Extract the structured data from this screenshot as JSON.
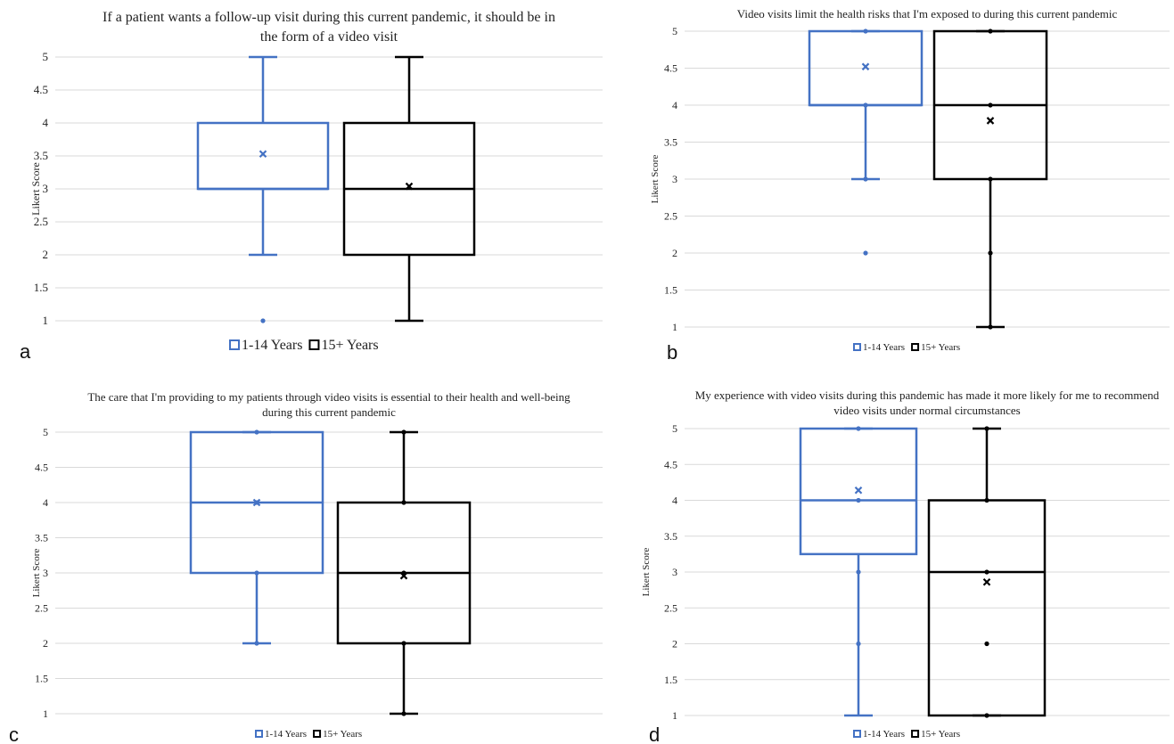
{
  "figure": {
    "legend": [
      "1-14 Years",
      "15+ Years"
    ],
    "colors": {
      "series_a": "#4472C4",
      "series_b": "#000000",
      "grid": "#d9d9d9"
    }
  },
  "chart_data": [
    {
      "type": "box",
      "panel": "a",
      "title_lines": [
        "If a patient wants a follow-up visit during this current pandemic, it should be in",
        "the form of a video visit"
      ],
      "ylabel": "Likert Score",
      "ylim": [
        1,
        5
      ],
      "yticks": [
        "1",
        "1.5",
        "2",
        "2.5",
        "3",
        "3.5",
        "4",
        "4.5",
        "5"
      ],
      "series": [
        {
          "name": "1-14 Years",
          "whisker_low": 2,
          "q1": 3,
          "median": 3,
          "q3": 4,
          "whisker_high": 5,
          "mean": 3.53,
          "points": [
            1
          ]
        },
        {
          "name": "15+ Years",
          "whisker_low": 1,
          "q1": 2,
          "median": 3,
          "q3": 4,
          "whisker_high": 5,
          "mean": 3.04,
          "points": []
        }
      ]
    },
    {
      "type": "box",
      "panel": "b",
      "title_lines": [
        "Video visits limit the health risks that I'm exposed to during this current pandemic"
      ],
      "ylabel": "Likert Score",
      "ylim": [
        1,
        5
      ],
      "yticks": [
        "1",
        "1.5",
        "2",
        "2.5",
        "3",
        "3.5",
        "4",
        "4.5",
        "5"
      ],
      "series": [
        {
          "name": "1-14 Years",
          "whisker_low": 3,
          "q1": 4,
          "median": 4,
          "q3": 5,
          "whisker_high": 5,
          "mean": 4.52,
          "points": [
            2,
            3,
            4,
            5
          ]
        },
        {
          "name": "15+ Years",
          "whisker_low": 1,
          "q1": 3,
          "median": 4,
          "q3": 5,
          "whisker_high": 5,
          "mean": 3.79,
          "points": [
            1,
            2,
            3,
            4,
            5
          ]
        }
      ]
    },
    {
      "type": "box",
      "panel": "c",
      "title_lines": [
        "The care that I'm providing to my patients through video visits is essential to their health and well-being",
        "during this current pandemic"
      ],
      "ylabel": "Likert Score",
      "ylim": [
        1,
        5
      ],
      "yticks": [
        "1",
        "1.5",
        "2",
        "2.5",
        "3",
        "3.5",
        "4",
        "4.5",
        "5"
      ],
      "series": [
        {
          "name": "1-14 Years",
          "whisker_low": 2,
          "q1": 3,
          "median": 4,
          "q3": 5,
          "whisker_high": 5,
          "mean": 4.0,
          "points": [
            2,
            3,
            4,
            5
          ]
        },
        {
          "name": "15+ Years",
          "whisker_low": 1,
          "q1": 2,
          "median": 3,
          "q3": 4,
          "whisker_high": 5,
          "mean": 2.96,
          "points": [
            1,
            2,
            3,
            4,
            5
          ]
        }
      ]
    },
    {
      "type": "box",
      "panel": "d",
      "title_lines": [
        "My experience with video visits during this pandemic has made it more likely for me to recommend",
        "video visits under normal circumstances"
      ],
      "ylabel": "Likert Score",
      "ylim": [
        1,
        5
      ],
      "yticks": [
        "1",
        "1.5",
        "2",
        "2.5",
        "3",
        "3.5",
        "4",
        "4.5",
        "5"
      ],
      "series": [
        {
          "name": "1-14 Years",
          "whisker_low": 1,
          "q1": 3.25,
          "median": 4,
          "q3": 5,
          "whisker_high": 5,
          "mean": 4.14,
          "points": [
            2,
            3,
            4,
            5
          ]
        },
        {
          "name": "15+ Years",
          "whisker_low": 1,
          "q1": 1,
          "median": 3,
          "q3": 4,
          "whisker_high": 5,
          "mean": 2.86,
          "points": [
            1,
            2,
            3,
            4,
            5
          ]
        }
      ]
    }
  ]
}
